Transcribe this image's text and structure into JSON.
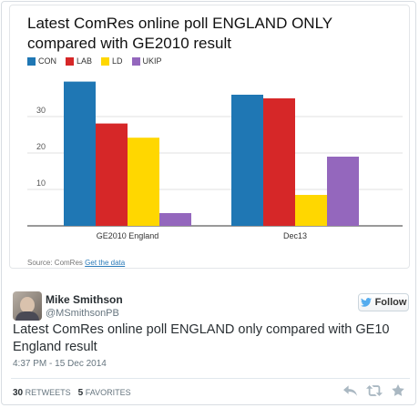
{
  "chart_data": {
    "type": "bar",
    "title": "Latest ComRes online poll ENGLAND ONLY compared with GE2010 result",
    "categories": [
      "GE2010 England",
      "Dec13"
    ],
    "series": [
      {
        "name": "CON",
        "color": "#1f77b4",
        "values": [
          39.6,
          36
        ]
      },
      {
        "name": "LAB",
        "color": "#d62728",
        "values": [
          28.1,
          35
        ]
      },
      {
        "name": "LD",
        "color": "#ffd700",
        "values": [
          24.2,
          8.5
        ]
      },
      {
        "name": "UKIP",
        "color": "#9467bd",
        "values": [
          3.5,
          19
        ]
      }
    ],
    "yticks": [
      "10",
      "20",
      "30"
    ],
    "ylim": [
      0,
      40
    ],
    "grid": true,
    "legend": "top-left",
    "source_label": "Source: ComRes",
    "source_link": "Get the data"
  },
  "tweet": {
    "user_name": "Mike Smithson",
    "user_handle": "@MSmithsonPB",
    "follow_label": "Follow",
    "text": "Latest ComRes online poll ENGLAND only compared with GE10 England result",
    "timestamp": "4:37 PM - 15 Dec 2014",
    "retweets_count": "30",
    "retweets_label": "RETWEETS",
    "favorites_count": "5",
    "favorites_label": "FAVORITES"
  },
  "icons": {
    "follow": "twitter-bird-icon",
    "reply": "reply-icon",
    "retweet": "retweet-icon",
    "favorite": "star-icon"
  }
}
